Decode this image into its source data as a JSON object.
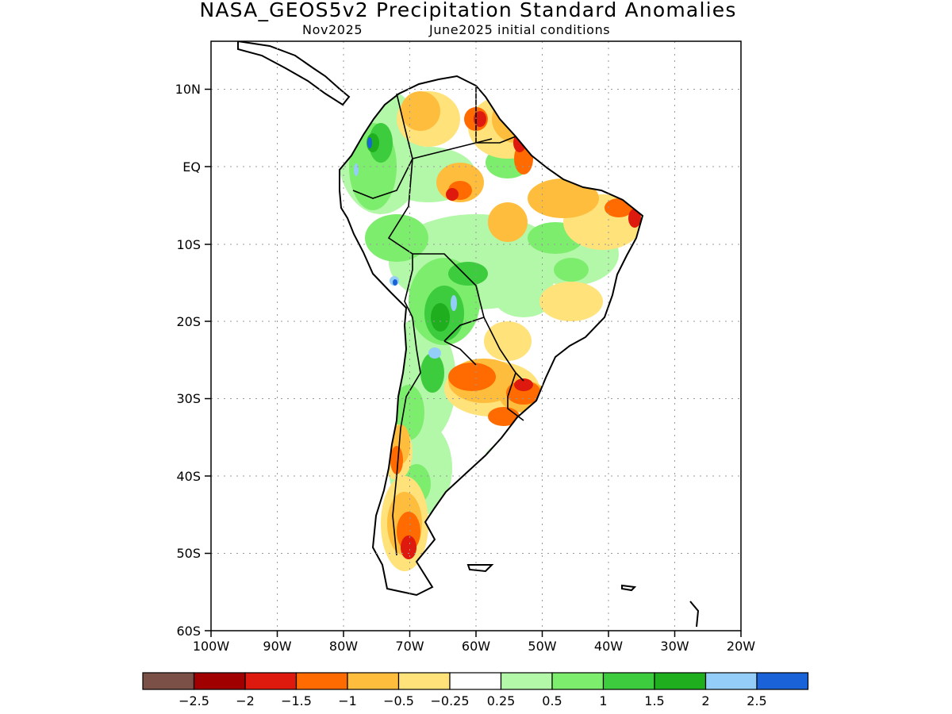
{
  "title": "NASA_GEOS5v2 Precipitation Standard Anomalies",
  "subtitle": {
    "month": "Nov2025",
    "initial": "June2025 initial conditions"
  },
  "axes": {
    "lat_labels": [
      "10N",
      "EQ",
      "10S",
      "20S",
      "30S",
      "40S",
      "50S",
      "60S"
    ],
    "lon_labels": [
      "100W",
      "90W",
      "80W",
      "70W",
      "60W",
      "50W",
      "40W",
      "30W",
      "20W"
    ]
  },
  "colorbar": {
    "colors": [
      "#7b5046",
      "#a10000",
      "#de1a0e",
      "#ff6b00",
      "#ffbd3d",
      "#ffe27a",
      "#ffffff",
      "#b3f7a8",
      "#7ded6e",
      "#3dcc3d",
      "#1eae1e",
      "#94cdf7",
      "#1a62d8"
    ],
    "labels": [
      "-2.5",
      "-2",
      "-1.5",
      "-1",
      "-0.5",
      "-0.25",
      "0.25",
      "0.5",
      "1",
      "1.5",
      "2",
      "2.5"
    ]
  }
}
